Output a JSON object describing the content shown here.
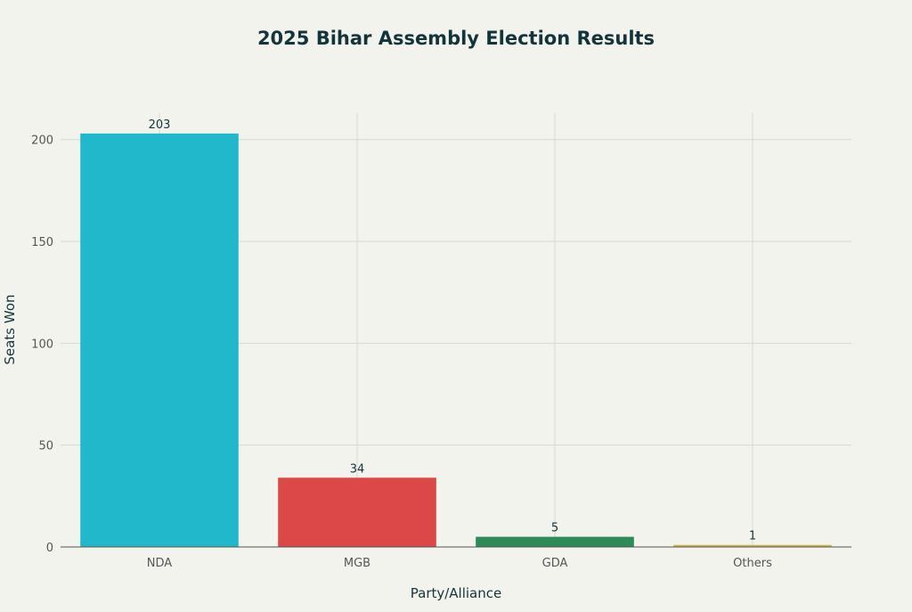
{
  "chart_data": {
    "type": "bar",
    "title": "2025 Bihar Assembly Election Results",
    "xlabel": "Party/Alliance",
    "ylabel": "Seats Won",
    "categories": [
      "NDA",
      "MGB",
      "GDA",
      "Others"
    ],
    "values": [
      203,
      34,
      5,
      1
    ],
    "data_labels": [
      "203",
      "34",
      "5",
      "1"
    ],
    "colors": [
      "#21b8cc",
      "#dc4747",
      "#2e8b57",
      "#d1b04e"
    ],
    "yticks": [
      0,
      50,
      100,
      150,
      200
    ],
    "ylim": [
      0,
      213
    ],
    "grid": true,
    "legend": "none"
  }
}
